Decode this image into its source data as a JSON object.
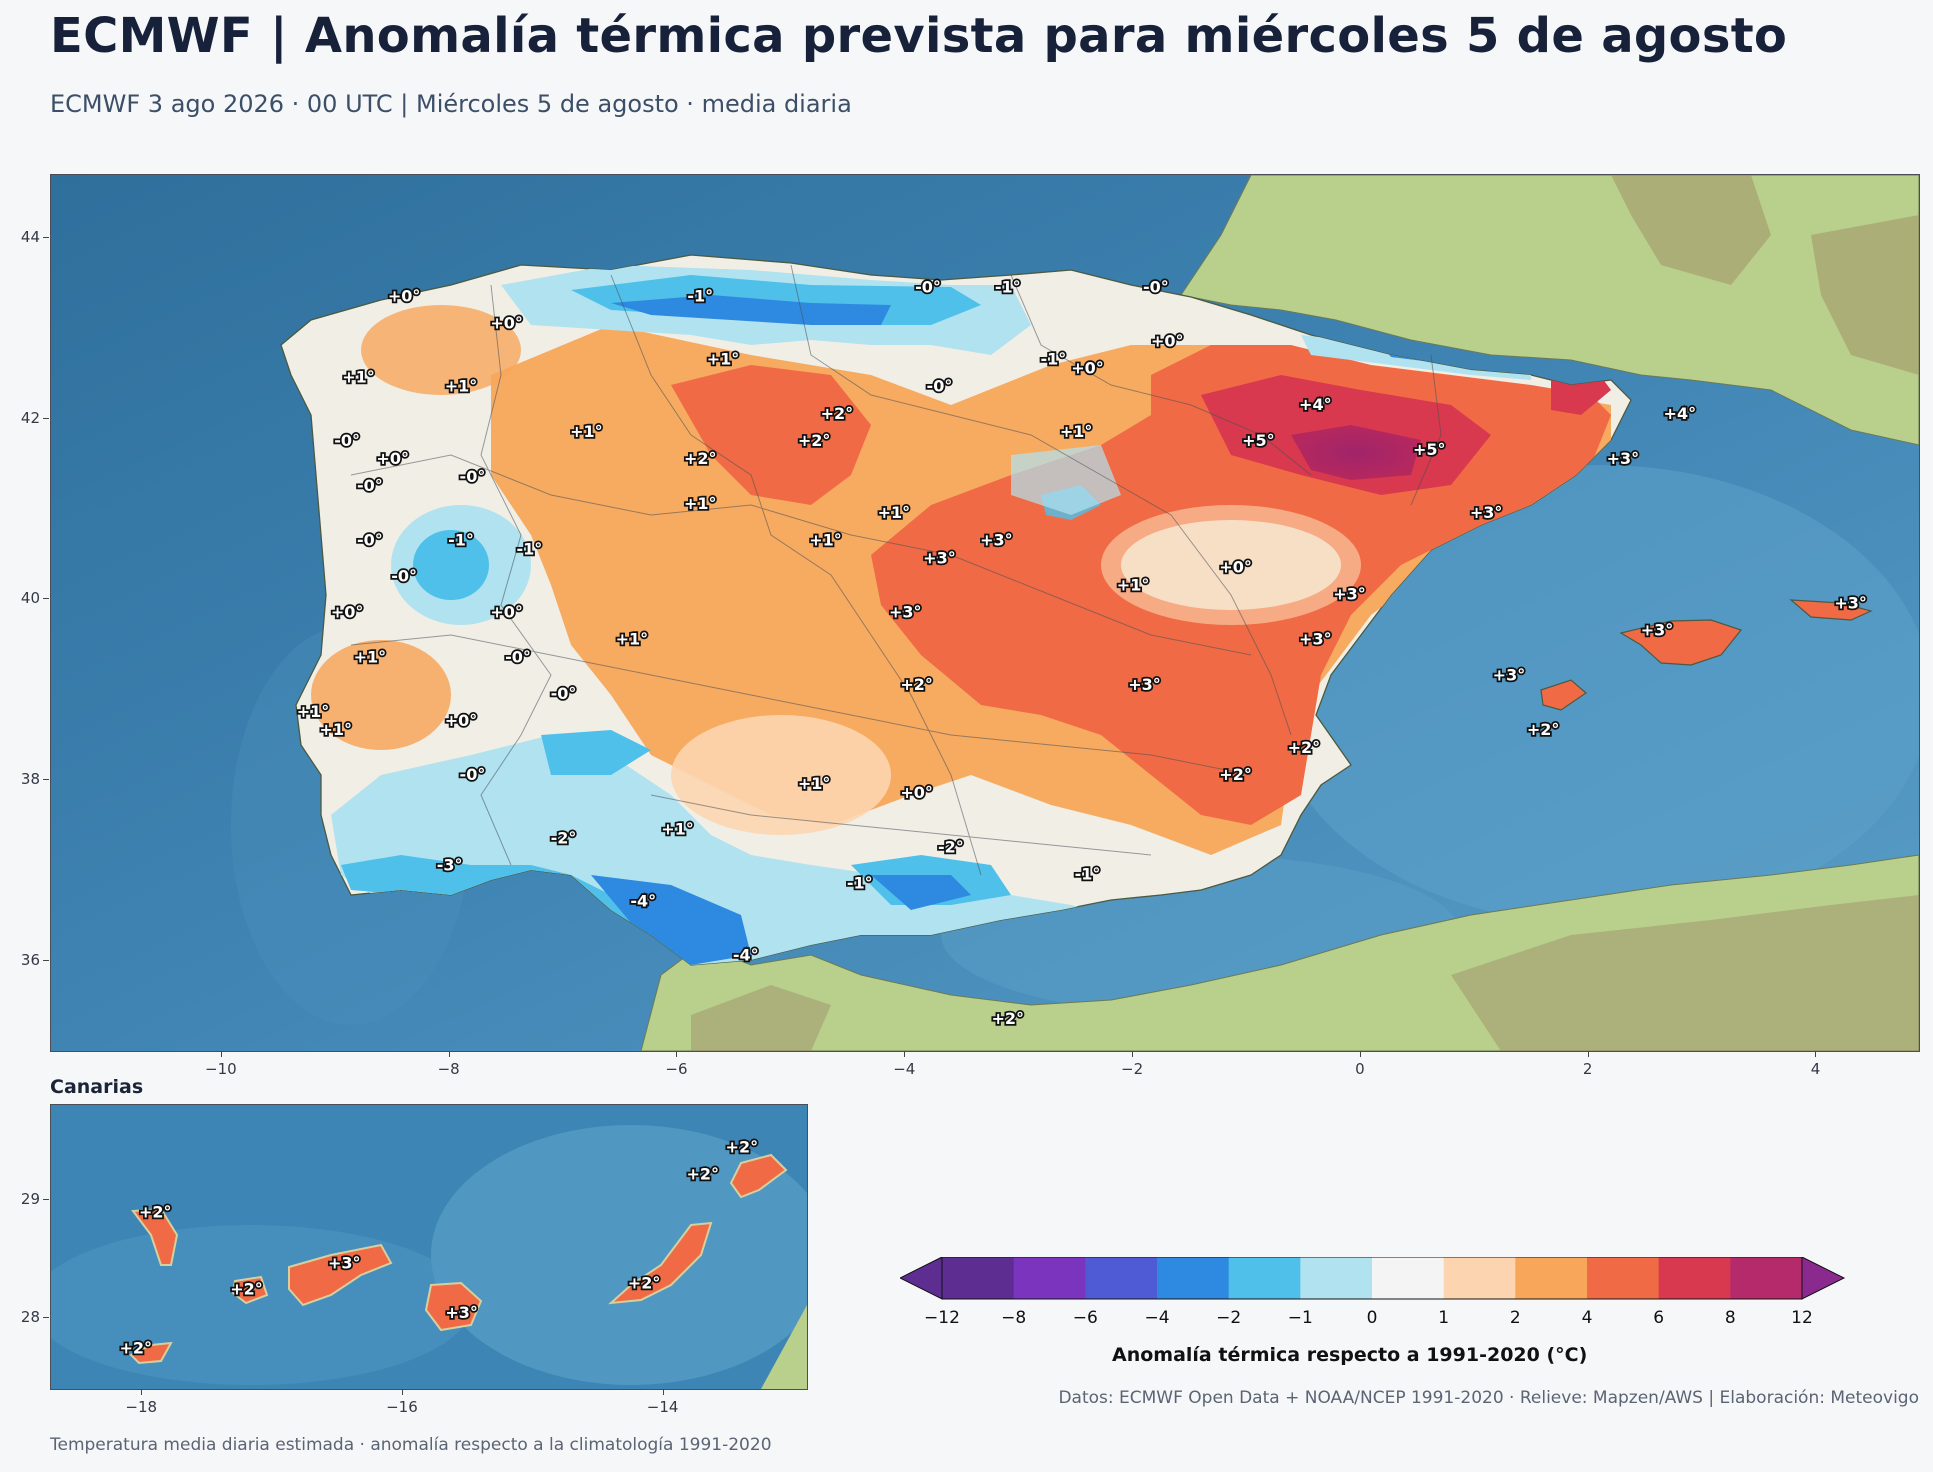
{
  "header": {
    "title": "ECMWF | Anomalía térmica prevista para miércoles 5 de agosto",
    "subtitle": "ECMWF 3 ago 2026 · 00 UTC  |  Miércoles 5 de agosto · media diaria"
  },
  "main_map": {
    "lon_ticks": [
      "−10",
      "−8",
      "−6",
      "−4",
      "−2",
      "0",
      "2",
      "4"
    ],
    "lat_ticks": [
      "44",
      "42",
      "40",
      "38",
      "36"
    ],
    "labels": [
      {
        "text": "+0°",
        "lon": -8.4,
        "lat": 43.3
      },
      {
        "text": "+0°",
        "lon": -7.5,
        "lat": 43.0
      },
      {
        "text": "-1°",
        "lon": -5.8,
        "lat": 43.3
      },
      {
        "text": "-0°",
        "lon": -3.8,
        "lat": 43.4
      },
      {
        "text": "-1°",
        "lon": -3.1,
        "lat": 43.4
      },
      {
        "text": "-0°",
        "lon": -1.8,
        "lat": 43.4
      },
      {
        "text": "+1°",
        "lon": -8.8,
        "lat": 42.4
      },
      {
        "text": "+1°",
        "lon": -7.9,
        "lat": 42.3
      },
      {
        "text": "+1°",
        "lon": -5.6,
        "lat": 42.6
      },
      {
        "text": "-1°",
        "lon": -2.7,
        "lat": 42.6
      },
      {
        "text": "+0°",
        "lon": -2.4,
        "lat": 42.5
      },
      {
        "text": "+0°",
        "lon": -1.7,
        "lat": 42.8
      },
      {
        "text": "-0°",
        "lon": -3.7,
        "lat": 42.3
      },
      {
        "text": "+4°",
        "lon": -0.4,
        "lat": 42.1
      },
      {
        "text": "+4°",
        "lon": 2.8,
        "lat": 42.0
      },
      {
        "text": "+2°",
        "lon": -4.6,
        "lat": 42.0
      },
      {
        "text": "+1°",
        "lon": -6.8,
        "lat": 41.8
      },
      {
        "text": "+2°",
        "lon": -4.8,
        "lat": 41.7
      },
      {
        "text": "+2°",
        "lon": -5.8,
        "lat": 41.5
      },
      {
        "text": "+1°",
        "lon": -2.5,
        "lat": 41.8
      },
      {
        "text": "+5°",
        "lon": -0.9,
        "lat": 41.7
      },
      {
        "text": "+5°",
        "lon": 0.6,
        "lat": 41.6
      },
      {
        "text": "+3°",
        "lon": 2.3,
        "lat": 41.5
      },
      {
        "text": "-0°",
        "lon": -8.9,
        "lat": 41.7
      },
      {
        "text": "+0°",
        "lon": -8.5,
        "lat": 41.5
      },
      {
        "text": "-0°",
        "lon": -7.8,
        "lat": 41.3
      },
      {
        "text": "-0°",
        "lon": -8.7,
        "lat": 41.2
      },
      {
        "text": "+1°",
        "lon": -5.8,
        "lat": 41.0
      },
      {
        "text": "+1°",
        "lon": -4.1,
        "lat": 40.9
      },
      {
        "text": "+3°",
        "lon": 1.1,
        "lat": 40.9
      },
      {
        "text": "-0°",
        "lon": -8.7,
        "lat": 40.6
      },
      {
        "text": "-1°",
        "lon": -7.9,
        "lat": 40.6
      },
      {
        "text": "-1°",
        "lon": -7.3,
        "lat": 40.5
      },
      {
        "text": "+1°",
        "lon": -4.7,
        "lat": 40.6
      },
      {
        "text": "+3°",
        "lon": -3.2,
        "lat": 40.6
      },
      {
        "text": "+3°",
        "lon": -3.7,
        "lat": 40.4
      },
      {
        "text": "+0°",
        "lon": -1.1,
        "lat": 40.3
      },
      {
        "text": "-0°",
        "lon": -8.4,
        "lat": 40.2
      },
      {
        "text": "+1°",
        "lon": -2.0,
        "lat": 40.1
      },
      {
        "text": "+3°",
        "lon": -0.1,
        "lat": 40.0
      },
      {
        "text": "+3°",
        "lon": -4.0,
        "lat": 39.8
      },
      {
        "text": "+0°",
        "lon": -8.9,
        "lat": 39.8
      },
      {
        "text": "+0°",
        "lon": -7.5,
        "lat": 39.8
      },
      {
        "text": "+3°",
        "lon": 4.3,
        "lat": 39.9
      },
      {
        "text": "+1°",
        "lon": -6.4,
        "lat": 39.5
      },
      {
        "text": "+3°",
        "lon": -0.4,
        "lat": 39.5
      },
      {
        "text": "+3°",
        "lon": 2.6,
        "lat": 39.6
      },
      {
        "text": "+1°",
        "lon": -8.7,
        "lat": 39.3
      },
      {
        "text": "-0°",
        "lon": -7.4,
        "lat": 39.3
      },
      {
        "text": "+3°",
        "lon": 1.3,
        "lat": 39.1
      },
      {
        "text": "+2°",
        "lon": -3.9,
        "lat": 39.0
      },
      {
        "text": "+3°",
        "lon": -1.9,
        "lat": 39.0
      },
      {
        "text": "-0°",
        "lon": -7.0,
        "lat": 38.9
      },
      {
        "text": "+1°",
        "lon": -9.2,
        "lat": 38.7
      },
      {
        "text": "+1°",
        "lon": -9.0,
        "lat": 38.5
      },
      {
        "text": "+0°",
        "lon": -7.9,
        "lat": 38.6
      },
      {
        "text": "+2°",
        "lon": 1.6,
        "lat": 38.5
      },
      {
        "text": "+2°",
        "lon": -0.5,
        "lat": 38.3
      },
      {
        "text": "-0°",
        "lon": -7.8,
        "lat": 38.0
      },
      {
        "text": "+1°",
        "lon": -4.8,
        "lat": 37.9
      },
      {
        "text": "+2°",
        "lon": -1.1,
        "lat": 38.0
      },
      {
        "text": "+0°",
        "lon": -3.9,
        "lat": 37.8
      },
      {
        "text": "+1°",
        "lon": -6.0,
        "lat": 37.4
      },
      {
        "text": "-2°",
        "lon": -7.0,
        "lat": 37.3
      },
      {
        "text": "-2°",
        "lon": -3.6,
        "lat": 37.2
      },
      {
        "text": "-3°",
        "lon": -8.0,
        "lat": 37.0
      },
      {
        "text": "-1°",
        "lon": -2.4,
        "lat": 36.9
      },
      {
        "text": "-1°",
        "lon": -4.4,
        "lat": 36.8
      },
      {
        "text": "-4°",
        "lon": -6.3,
        "lat": 36.6
      },
      {
        "text": "-4°",
        "lon": -5.4,
        "lat": 36.0
      },
      {
        "text": "+2°",
        "lon": -3.1,
        "lat": 35.3
      }
    ]
  },
  "inset": {
    "title": "Canarias",
    "lon_ticks": [
      "−18",
      "−16",
      "−14"
    ],
    "lat_ticks": [
      "29",
      "28"
    ],
    "labels": [
      {
        "text": "+2°",
        "lon": -17.9,
        "lat": 28.85
      },
      {
        "text": "+2°",
        "lon": -17.2,
        "lat": 28.2
      },
      {
        "text": "+3°",
        "lon": -16.45,
        "lat": 28.42
      },
      {
        "text": "+3°",
        "lon": -15.55,
        "lat": 28.0
      },
      {
        "text": "+2°",
        "lon": -14.15,
        "lat": 28.25
      },
      {
        "text": "+2°",
        "lon": -13.7,
        "lat": 29.17
      },
      {
        "text": "+2°",
        "lon": -13.4,
        "lat": 29.4
      },
      {
        "text": "+2°",
        "lon": -18.05,
        "lat": 27.7
      }
    ]
  },
  "colorbar": {
    "label": "Anomalía térmica respecto a 1991-2020 (°C)",
    "ticks": [
      "−12",
      "−8",
      "−6",
      "−4",
      "−2",
      "−1",
      "0",
      "1",
      "2",
      "4",
      "6",
      "8",
      "12"
    ],
    "colors": [
      "#5e2d91",
      "#7b34bd",
      "#4f5bd5",
      "#2e8ae0",
      "#4ec0ea",
      "#b0e2f0",
      "#f4f4f4",
      "#fcd5b0",
      "#f7a65a",
      "#f06b45",
      "#d8394e",
      "#b52a6b",
      "#8b2a8e"
    ]
  },
  "credits": "Datos: ECMWF Open Data + NOAA/NCEP 1991-2020 · Relieve: Mapzen/AWS  |  Elaboración: Meteovigo",
  "footnote": "Temperatura media diaria estimada · anomalía respecto a la climatología 1991-2020"
}
